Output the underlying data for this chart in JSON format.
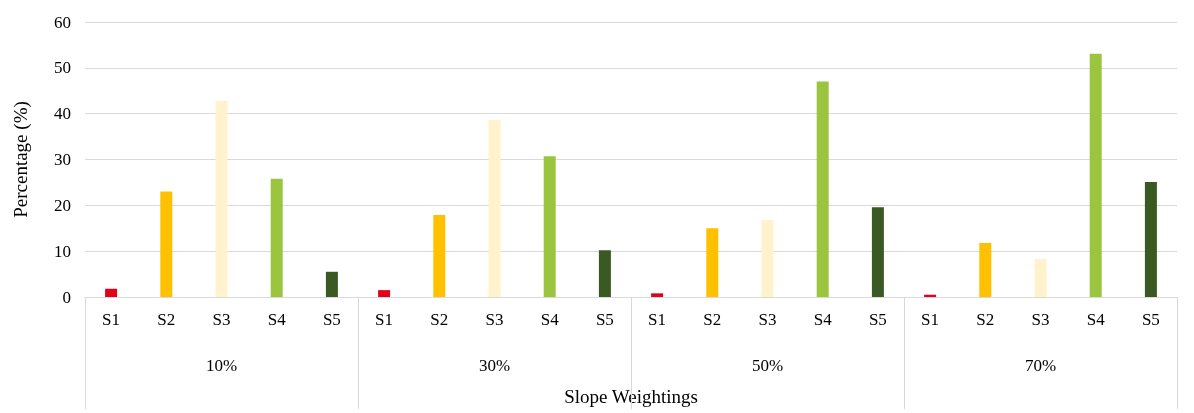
{
  "chart_data": {
    "type": "bar",
    "xlabel": "Slope Weightings",
    "ylabel": "Percentage (%)",
    "categories": [
      "10%",
      "30%",
      "50%",
      "70%"
    ],
    "series": [
      {
        "name": "S1",
        "color": "#e3001b",
        "values": [
          1.8,
          1.5,
          0.8,
          0.5
        ]
      },
      {
        "name": "S2",
        "color": "#ffc000",
        "values": [
          23.0,
          17.9,
          15.0,
          11.8
        ]
      },
      {
        "name": "S3",
        "color": "#fff2cc",
        "values": [
          42.8,
          38.6,
          16.8,
          8.3
        ]
      },
      {
        "name": "S4",
        "color": "#9bc43f",
        "values": [
          25.8,
          30.7,
          47.0,
          53.1
        ]
      },
      {
        "name": "S5",
        "color": "#3b5a23",
        "values": [
          5.5,
          10.2,
          19.6,
          25.1
        ]
      }
    ],
    "ylim": [
      0,
      60
    ],
    "yticks": [
      0,
      10,
      20,
      30,
      40,
      50,
      60
    ],
    "grid": "y",
    "legend": false
  }
}
